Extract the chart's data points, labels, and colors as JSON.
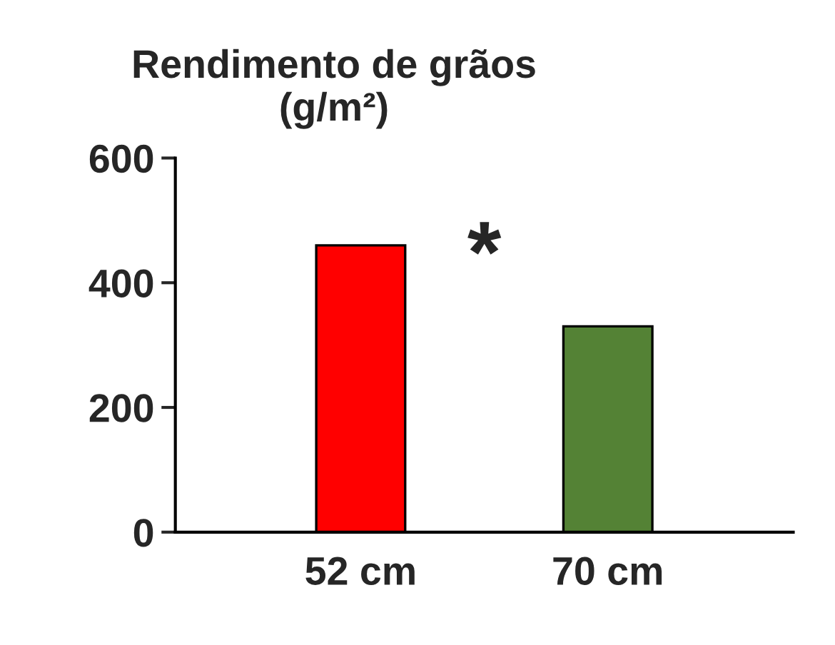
{
  "chart_data": {
    "type": "bar",
    "title": "Rendimento de grãos\n(g/m²)",
    "categories": [
      "52 cm",
      "70 cm"
    ],
    "values": [
      460,
      330
    ],
    "colors": [
      "#ff0000",
      "#548235"
    ],
    "ylim": [
      0,
      600
    ],
    "yticks": [
      0,
      200,
      400,
      600
    ],
    "annotations": [
      "*"
    ],
    "grid": false,
    "legend": false
  }
}
